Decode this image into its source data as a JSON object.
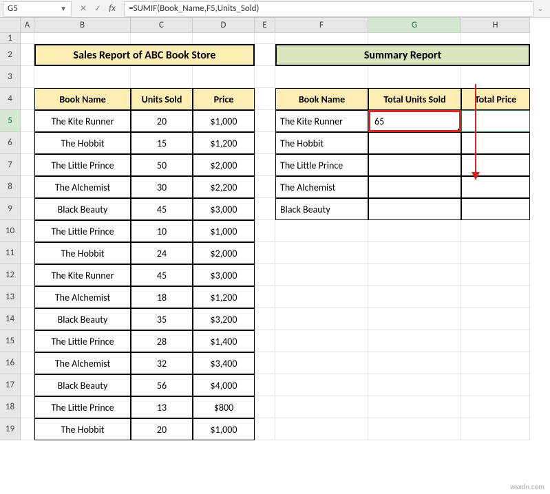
{
  "nameBox": "G5",
  "formula": "=SUMIF(Book_Name,F5,Units_Sold)",
  "columns": [
    "A",
    "B",
    "C",
    "D",
    "E",
    "F",
    "G",
    "H"
  ],
  "activeCol": "G",
  "activeRow": 5,
  "rowCount": 19,
  "titles": {
    "left": "Sales Report of ABC Book Store",
    "right": "Summary Report"
  },
  "leftHeaders": [
    "Book Name",
    "Units Sold",
    "Price"
  ],
  "rightHeaders": [
    "Book Name",
    "Total Units Sold",
    "Total Price"
  ],
  "leftData": [
    [
      "The Kite Runner",
      "20",
      "$1,000"
    ],
    [
      "The Hobbit",
      "15",
      "$1,200"
    ],
    [
      "The Little Prince",
      "50",
      "$2,000"
    ],
    [
      "The Alchemist",
      "30",
      "$2,200"
    ],
    [
      "Black Beauty",
      "45",
      "$3,000"
    ],
    [
      "The Little Prince",
      "10",
      "$1,000"
    ],
    [
      "The Hobbit",
      "24",
      "$2,000"
    ],
    [
      "The Kite Runner",
      "45",
      "$3,000"
    ],
    [
      "The Alchemist",
      "18",
      "$1,200"
    ],
    [
      "Black Beauty",
      "35",
      "$3,200"
    ],
    [
      "The Little Prince",
      "28",
      "$1,400"
    ],
    [
      "The Alchemist",
      "32",
      "$3,400"
    ],
    [
      "Black Beauty",
      "56",
      "$4,000"
    ],
    [
      "The Little Prince",
      "13",
      "$800"
    ],
    [
      "The Hobbit",
      "20",
      "$1,000"
    ]
  ],
  "rightData": [
    [
      "The Kite Runner",
      "65",
      ""
    ],
    [
      "The Hobbit",
      "",
      ""
    ],
    [
      "The Little Prince",
      "",
      ""
    ],
    [
      "The Alchemist",
      "",
      ""
    ],
    [
      "Black Beauty",
      "",
      ""
    ]
  ],
  "watermark": "wsxdn.com",
  "colors": {
    "yellowHeader": "#ffeeb4",
    "greenHeader": "#d7e4bc",
    "selectRed": "#d22",
    "excelGreen": "#217346"
  }
}
